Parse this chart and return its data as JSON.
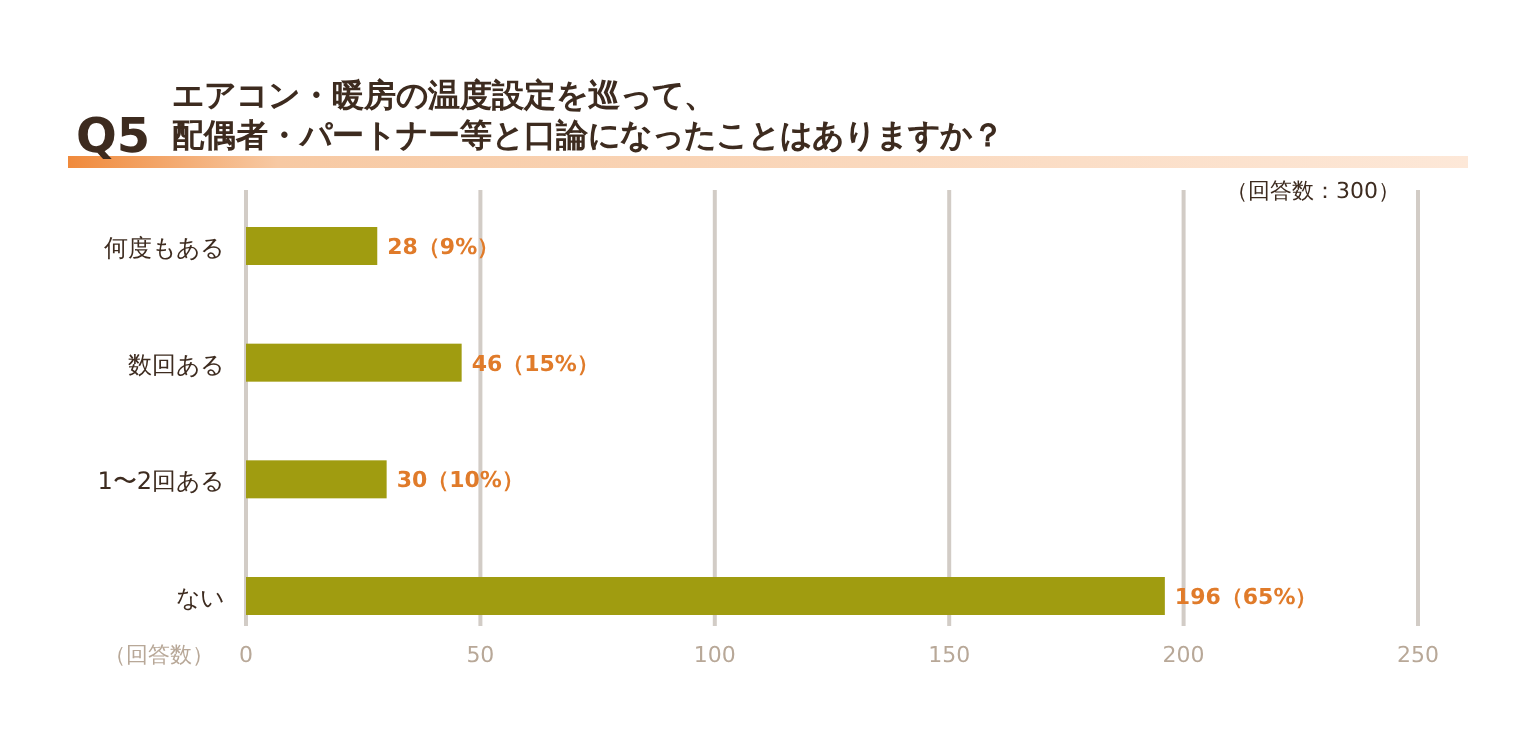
{
  "chart_data": {
    "type": "bar",
    "orientation": "horizontal",
    "title": "Q5",
    "subtitle": "エアコン・暖房の温度設定を巡って、配偶者・パートナー等と口論になったことはありますか？",
    "categories": [
      "何度もある",
      "数回ある",
      "1〜2回ある",
      "ない"
    ],
    "values": [
      28,
      46,
      30,
      196
    ],
    "value_labels": [
      "28（9%）",
      "46（15%）",
      "30（10%）",
      "196（65%）"
    ],
    "color": "#a09c10",
    "xlim": [
      0,
      250
    ],
    "xticks": [
      0,
      50,
      100,
      150,
      200,
      250
    ],
    "xlabel": "（回答数）",
    "annotations": [
      "（回答数：300）"
    ],
    "grid": "x"
  }
}
